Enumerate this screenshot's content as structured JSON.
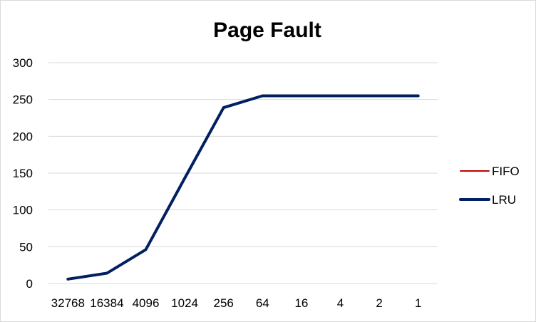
{
  "chart_data": {
    "type": "line",
    "title": "Page Fault",
    "categories": [
      "32768",
      "16384",
      "4096",
      "1024",
      "256",
      "64",
      "16",
      "4",
      "2",
      "1"
    ],
    "series": [
      {
        "name": "FIFO",
        "color": "#c00000",
        "values": [
          6,
          14,
          46,
          143,
          239,
          255,
          255,
          255,
          255,
          255
        ]
      },
      {
        "name": "LRU",
        "color": "#002060",
        "values": [
          6,
          14,
          46,
          143,
          239,
          255,
          255,
          255,
          255,
          255
        ]
      }
    ],
    "ylim": [
      0,
      300
    ],
    "y_ticks": [
      "0",
      "50",
      "100",
      "150",
      "200",
      "250",
      "300"
    ],
    "grid": true,
    "legend_position": "right",
    "gridline_color": "#d9d9d9"
  }
}
